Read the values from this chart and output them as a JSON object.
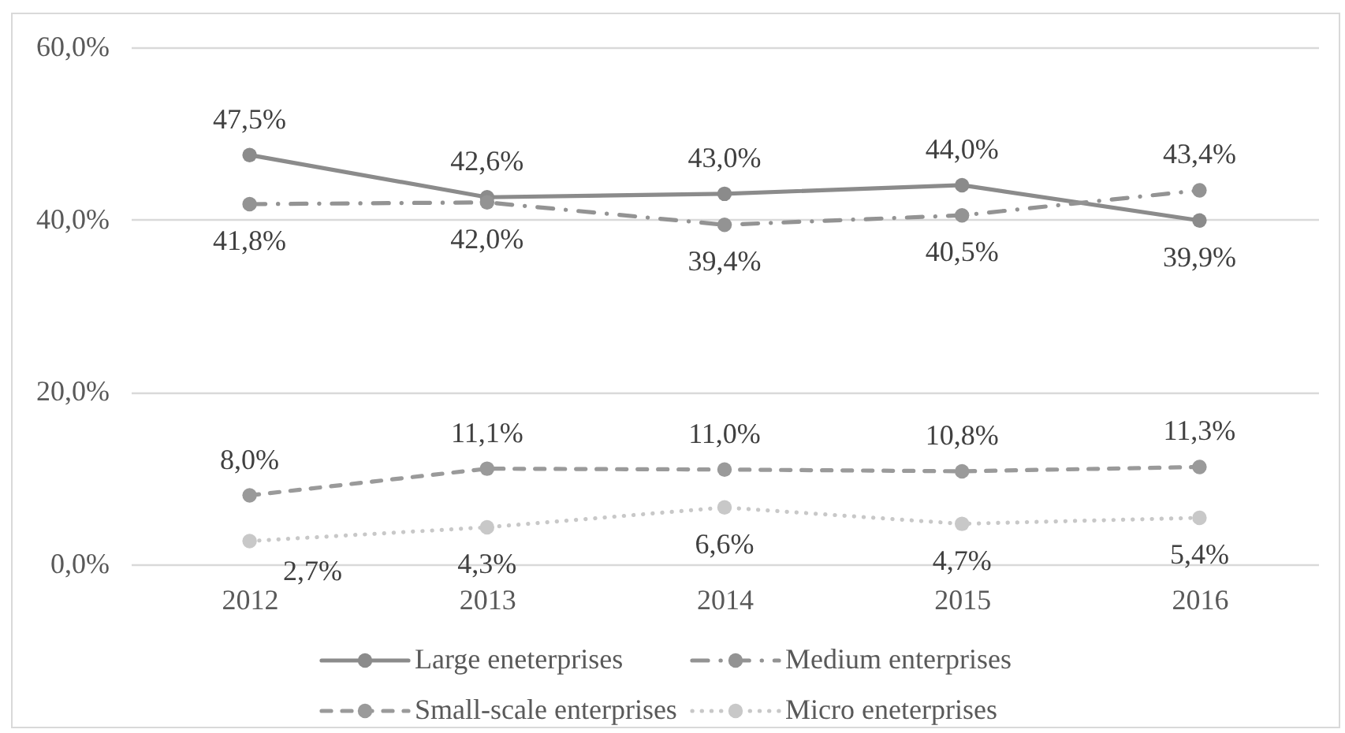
{
  "chart_data": {
    "type": "line",
    "categories": [
      "2012",
      "2013",
      "2014",
      "2015",
      "2016"
    ],
    "series": [
      {
        "name": "Large eneterprises",
        "color": "#8b8b8b",
        "line_style": "solid",
        "values": [
          47.5,
          42.6,
          43.0,
          44.0,
          39.9
        ],
        "value_labels": [
          "47,5%",
          "42,6%",
          "43,0%",
          "44,0%",
          "39,9%"
        ]
      },
      {
        "name": "Medium enterprises",
        "color": "#939393",
        "line_style": "dashdot",
        "values": [
          41.8,
          42.0,
          39.4,
          40.5,
          43.4
        ],
        "value_labels": [
          "41,8%",
          "42,0%",
          "39,4%",
          "40,5%",
          "43,4%"
        ]
      },
      {
        "name": "Small-scale enterprises",
        "color": "#9a9a9a",
        "line_style": "dashed",
        "values": [
          8.0,
          11.1,
          11.0,
          10.8,
          11.3
        ],
        "value_labels": [
          "8,0%",
          "11,1%",
          "11,0%",
          "10,8%",
          "11,3%"
        ]
      },
      {
        "name": "Micro eneterprises",
        "color": "#c8c8c8",
        "line_style": "dotted",
        "values": [
          2.7,
          4.3,
          6.6,
          4.7,
          5.4
        ],
        "value_labels": [
          "2,7%",
          "4,3%",
          "6,6%",
          "4,7%",
          "5,4%"
        ]
      }
    ],
    "ylim": [
      0,
      60
    ],
    "yticks": [
      {
        "value": 0,
        "label": "0,0%"
      },
      {
        "value": 20,
        "label": "20,0%"
      },
      {
        "value": 40,
        "label": "40,0%"
      },
      {
        "value": 60,
        "label": "60,0%"
      }
    ],
    "grid": "y",
    "legend": "bottom",
    "marker": "circle"
  }
}
